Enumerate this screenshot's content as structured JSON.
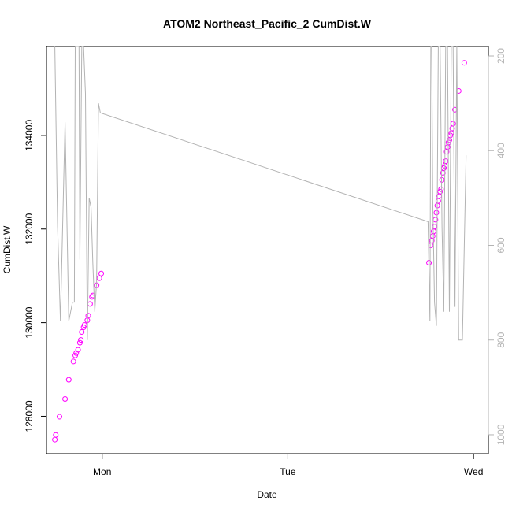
{
  "chart_data": {
    "type": "scatter",
    "title": "ATOM2 Northeast_Pacific_2 CumDist.W",
    "xlabel": "Date",
    "ylabel": "CumDist.W",
    "x_tick_labels": [
      "Mon",
      "Tue",
      "Wed"
    ],
    "x_tick_positions_days": [
      0,
      1,
      2
    ],
    "xlim_days": [
      -0.3,
      2.08
    ],
    "ylim": [
      127200,
      135900
    ],
    "y_ticks": [
      128000,
      130000,
      132000,
      134000
    ],
    "right_axis": {
      "ylim": [
        1040,
        180
      ],
      "ticks": [
        200,
        400,
        600,
        800,
        1000
      ],
      "color": "#b3b3b3"
    },
    "series": [
      {
        "color": "#ff00ff",
        "marker": "open-circle",
        "x": [
          -0.255,
          -0.25,
          -0.23,
          -0.2,
          -0.18,
          -0.155,
          -0.145,
          -0.14,
          -0.13,
          -0.12,
          -0.115,
          -0.11,
          -0.1,
          -0.095,
          -0.08,
          -0.075,
          -0.065,
          -0.055,
          -0.05,
          -0.03,
          -0.015,
          -0.005,
          1.76,
          1.77,
          1.775,
          1.78,
          1.785,
          1.79,
          1.795,
          1.8,
          1.805,
          1.81,
          1.815,
          1.82,
          1.825,
          1.83,
          1.835,
          1.84,
          1.845,
          1.85,
          1.855,
          1.86,
          1.865,
          1.87,
          1.875,
          1.88,
          1.885,
          1.89,
          1.9,
          1.92,
          1.95
        ],
        "y": [
          127500,
          127600,
          127990,
          128370,
          128780,
          129170,
          129300,
          129350,
          129420,
          129570,
          129630,
          129800,
          129900,
          129950,
          130050,
          130150,
          130400,
          130550,
          130580,
          130800,
          130950,
          131050,
          131280,
          131650,
          131750,
          131850,
          131950,
          132050,
          132200,
          132350,
          132500,
          132600,
          132700,
          132800,
          132850,
          133050,
          133200,
          133300,
          133350,
          133450,
          133650,
          133750,
          133850,
          133900,
          134000,
          134050,
          134150,
          134250,
          134550,
          134950,
          135550
        ]
      },
      {
        "color": "#b3b3b3",
        "marker": "line",
        "axis": "right",
        "x": [
          -0.255,
          -0.24,
          -0.225,
          -0.2,
          -0.18,
          -0.16,
          -0.15,
          -0.145,
          -0.13,
          -0.125,
          -0.12,
          -0.11,
          -0.1,
          -0.09,
          -0.08,
          -0.07,
          -0.06,
          -0.05,
          -0.04,
          -0.03,
          -0.02,
          -0.01,
          1.755,
          1.765,
          1.77,
          1.775,
          1.78,
          1.79,
          1.8,
          1.81,
          1.82,
          1.83,
          1.84,
          1.85,
          1.86,
          1.87,
          1.88,
          1.89,
          1.9,
          1.91,
          1.92,
          1.93,
          1.94,
          1.95,
          1.96
        ],
        "y": [
          180,
          560,
          760,
          340,
          760,
          720,
          720,
          180,
          180,
          180,
          630,
          180,
          180,
          280,
          800,
          500,
          520,
          640,
          740,
          680,
          300,
          320,
          550,
          760,
          180,
          180,
          500,
          720,
          770,
          180,
          180,
          560,
          740,
          180,
          180,
          740,
          180,
          180,
          730,
          180,
          800,
          800,
          800,
          600,
          410
        ]
      }
    ]
  }
}
